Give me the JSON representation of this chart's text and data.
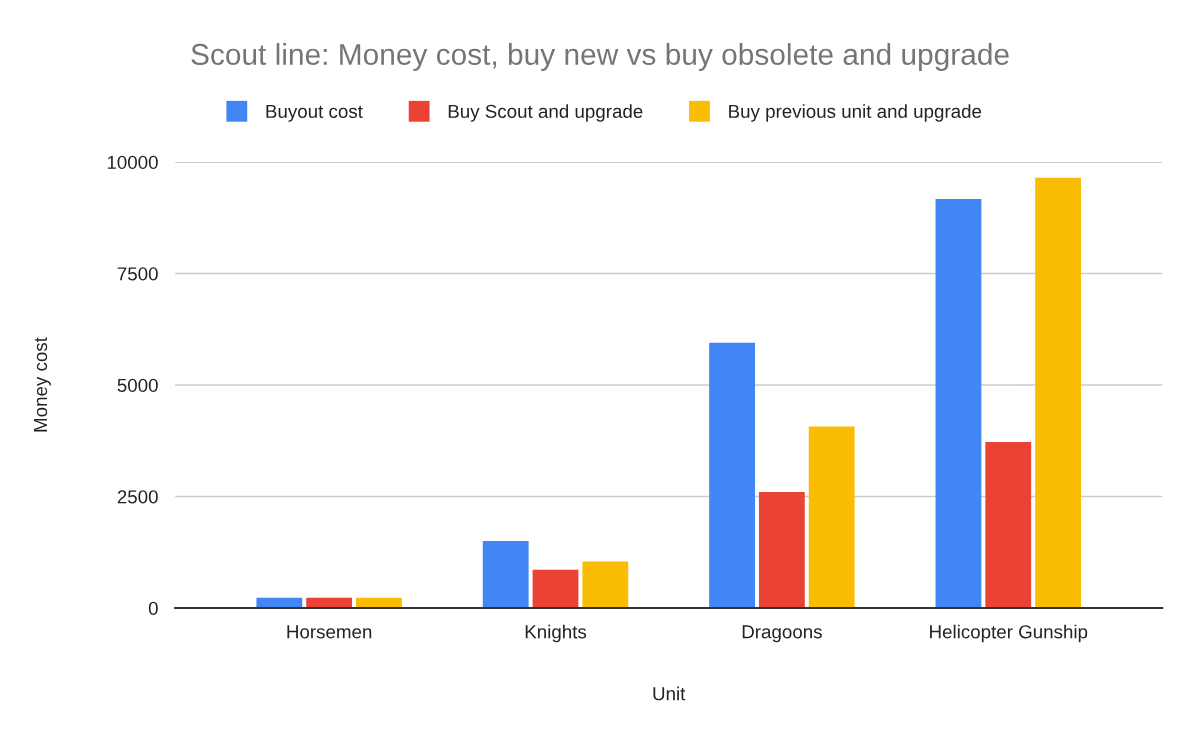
{
  "chart_data": {
    "type": "bar",
    "title": "Scout line: Money cost, buy new vs buy obsolete and upgrade",
    "xlabel": "Unit",
    "ylabel": "Money cost",
    "categories": [
      "Horsemen",
      "Knights",
      "Dragoons",
      "Helicopter Gunship"
    ],
    "series": [
      {
        "name": "Buyout cost",
        "color": "#4285f4",
        "values": [
          230,
          1500,
          5950,
          9170
        ]
      },
      {
        "name": "Buy Scout and upgrade",
        "color": "#ea4335",
        "values": [
          230,
          860,
          2600,
          3720
        ]
      },
      {
        "name": "Buy previous unit and upgrade",
        "color": "#fbbc04",
        "values": [
          230,
          1040,
          4070,
          9650
        ]
      }
    ],
    "ylim": [
      0,
      10000
    ],
    "yticks": [
      0,
      2500,
      5000,
      7500,
      10000
    ],
    "grid": "y",
    "legend": "top"
  }
}
